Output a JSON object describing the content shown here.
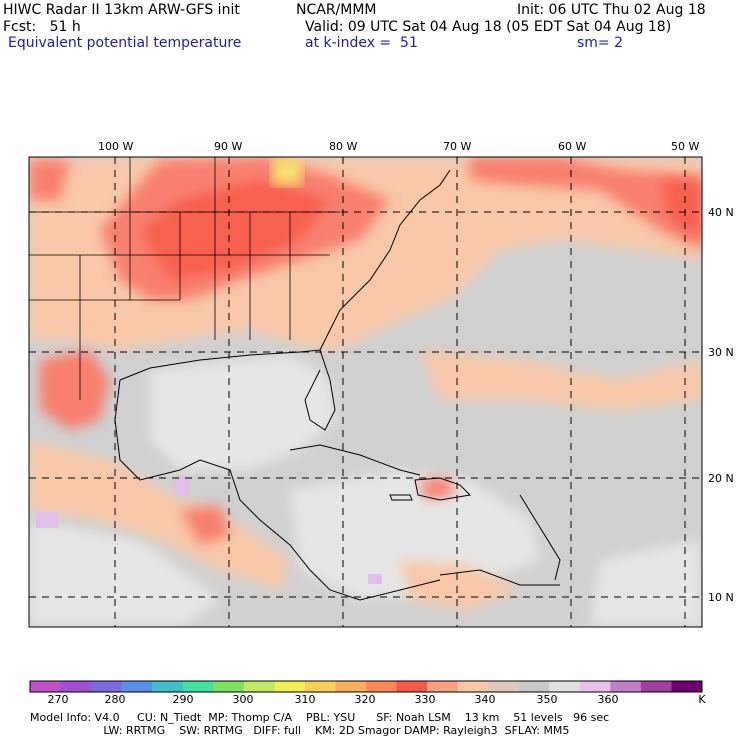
{
  "header": {
    "line1_left": "HIWC Radar II 13km ARW-GFS init",
    "line1_mid": "NCAR/MMM",
    "line1_right": "Init: 06 UTC Thu 02 Aug 18",
    "line2_left": "Fcst:   51 h",
    "line2_right": "Valid: 09 UTC Sat 04 Aug 18 (05 EDT Sat 04 Aug 18)",
    "line3_left": "Equivalent potential temperature",
    "line3_mid": "at k-index =  51",
    "line3_right": "sm= 2"
  },
  "map": {
    "lon_labels": [
      "100 W",
      "90 W",
      "80 W",
      "70 W",
      "60 W",
      "50 W"
    ],
    "lat_labels": [
      "40 N",
      "30 N",
      "20 N",
      "10 N"
    ]
  },
  "colorbar": {
    "labels": [
      "270",
      "280",
      "290",
      "300",
      "310",
      "320",
      "330",
      "340",
      "350",
      "360",
      "K"
    ],
    "colors": [
      "#c050c8",
      "#a050d0",
      "#7c68e0",
      "#5c90e8",
      "#40c0c8",
      "#40e0a0",
      "#80e060",
      "#c0e860",
      "#f0f050",
      "#f8d058",
      "#f8b060",
      "#f88858",
      "#f85848",
      "#f8a080",
      "#f8c8a8",
      "#e0c8b8",
      "#c8c8c8",
      "#e0e0e0",
      "#e8c0e8",
      "#c080c8",
      "#a040a0",
      "#700070"
    ]
  },
  "footer": {
    "line1": "Model Info: V4.0     CU: N_Tiedt  MP: Thomp C/A    PBL: YSU      SF: Noah LSM    13 km    51 levels   96 sec",
    "line2": "                     LW: RRTMG    SW: RRTMG   DIFF: full    KM: 2D Smagor DAMP: Rayleigh3  SFLAY: MM5"
  }
}
